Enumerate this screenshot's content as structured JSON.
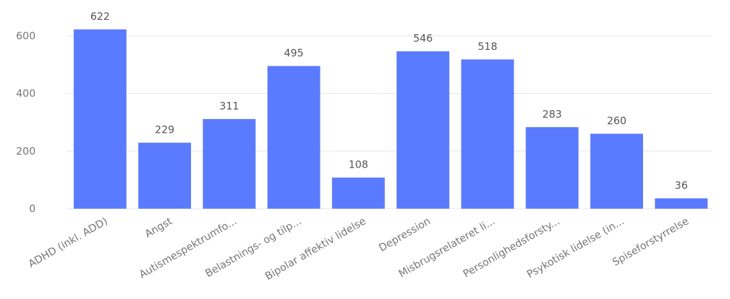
{
  "chart_data": {
    "type": "bar",
    "categories": [
      "ADHD (inkl. ADD)",
      "Angst",
      "Autismespektrumfo...",
      "Belastnings- og tilp...",
      "Bipolar affektiv lidelse",
      "Depression",
      "Misbrugsrelateret li...",
      "Personlighedsforsty...",
      "Psykotisk lidelse (in...",
      "Spiseforstyrrelse"
    ],
    "values": [
      622,
      229,
      311,
      495,
      108,
      546,
      518,
      283,
      260,
      36
    ],
    "data_labels": [
      "622",
      "229",
      "311",
      "495",
      "108",
      "546",
      "518",
      "283",
      "260",
      "36"
    ],
    "yticks": [
      "0",
      "200",
      "400",
      "600"
    ],
    "ytick_values": [
      0,
      200,
      400,
      600
    ],
    "ylim": [
      0,
      650
    ],
    "grid": true,
    "legend": "none",
    "colors": {
      "bar": "#5b7bfe",
      "grid": "#e6e6e6",
      "text": "#777777"
    }
  }
}
